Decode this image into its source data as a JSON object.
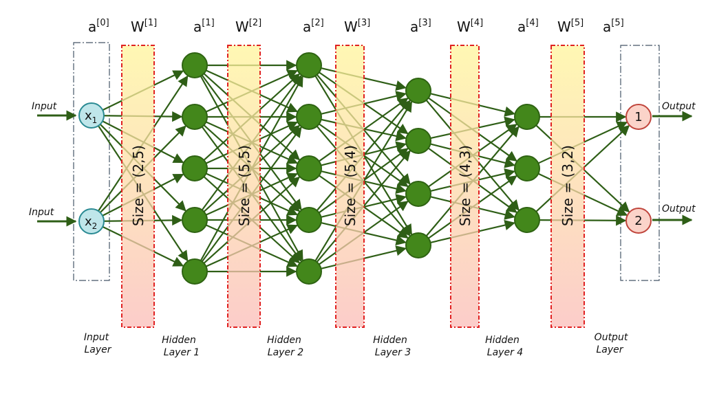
{
  "columns": {
    "a0": {
      "base": "a",
      "sup": "[0]"
    },
    "w1": {
      "base": "W",
      "sup": "[1]"
    },
    "a1": {
      "base": "a",
      "sup": "[1]"
    },
    "w2": {
      "base": "W",
      "sup": "[2]"
    },
    "a2": {
      "base": "a",
      "sup": "[2]"
    },
    "w3": {
      "base": "W",
      "sup": "[3]"
    },
    "a3": {
      "base": "a",
      "sup": "[3]"
    },
    "w4": {
      "base": "W",
      "sup": "[4]"
    },
    "a4": {
      "base": "a",
      "sup": "[4]"
    },
    "w5": {
      "base": "W",
      "sup": "[5]"
    },
    "a5": {
      "base": "a",
      "sup": "[5]"
    }
  },
  "weight_sizes": {
    "w1": "Size = (2,5)",
    "w2": "Size = (5,5)",
    "w3": "Size = (5,4)",
    "w4": "Size = (4,3)",
    "w5": "Size = (3,2)"
  },
  "layers": {
    "input": {
      "line1": "Input",
      "line2": "Layer"
    },
    "hidden1": {
      "line1": "Hidden",
      "line2": "Layer 1"
    },
    "hidden2": {
      "line1": "Hidden",
      "line2": "Layer 2"
    },
    "hidden3": {
      "line1": "Hidden",
      "line2": "Layer 3"
    },
    "hidden4": {
      "line1": "Hidden",
      "line2": "Layer 4"
    },
    "output": {
      "line1": "Output",
      "line2": "Layer"
    }
  },
  "io": {
    "input_1": "Input",
    "input_2": "Input",
    "output_1": "Output",
    "output_2": "Output"
  },
  "nodes": {
    "x1": {
      "base": "x",
      "sub": "1"
    },
    "x2": {
      "base": "x",
      "sub": "2"
    },
    "out1": "1",
    "out2": "2"
  },
  "layer_sizes": [
    2,
    5,
    5,
    4,
    3,
    2
  ],
  "colors": {
    "input_node_fill": "#bfe6ea",
    "input_node_stroke": "#2a8a93",
    "hidden_node_fill": "#43871b",
    "hidden_node_stroke": "#2e6312",
    "output_node_fill": "#fbd3c9",
    "output_node_stroke": "#c0453c",
    "connection": "#2e5e16",
    "weight_band_top": "#fff59a",
    "weight_band_bottom": "#fbbcb8",
    "weight_band_border": "#e02020",
    "layer_box_border": "#445566"
  }
}
